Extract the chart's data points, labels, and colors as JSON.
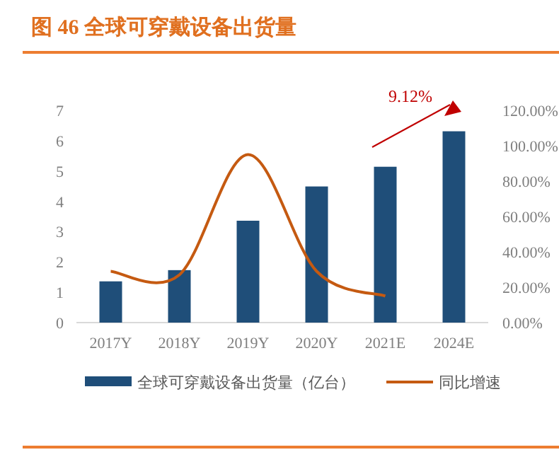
{
  "chart_data": {
    "type": "bar",
    "title": "图 46 全球可穿戴设备出货量",
    "categories": [
      "2017Y",
      "2018Y",
      "2019Y",
      "2020Y",
      "2021E",
      "2024E"
    ],
    "series": [
      {
        "name": "全球可穿戴设备出货量（亿台）",
        "color": "#1f4e79",
        "values": [
          1.36,
          1.73,
          3.36,
          4.49,
          5.14,
          6.31
        ]
      },
      {
        "name": "同比增速",
        "type": "line",
        "axis": "y2",
        "color": "#c55a11",
        "values": [
          29,
          27,
          95,
          29,
          15,
          null
        ]
      }
    ],
    "ylim": [
      0,
      7
    ],
    "yticks": [
      0,
      1,
      2,
      3,
      4,
      5,
      6,
      7
    ],
    "y2lim": [
      0,
      120
    ],
    "y2ticks": [
      {
        "value": 0,
        "label": "0.00%"
      },
      {
        "value": 20,
        "label": "20.00%"
      },
      {
        "value": 40,
        "label": "40.00%"
      },
      {
        "value": 60,
        "label": "60.00%"
      },
      {
        "value": 80,
        "label": "80.00%"
      },
      {
        "value": 100,
        "label": "100.00%"
      },
      {
        "value": 120,
        "label": "120.00%"
      }
    ],
    "annotations": [
      "9.12%"
    ],
    "legend": "bottom",
    "grid": false,
    "marker": "none"
  }
}
